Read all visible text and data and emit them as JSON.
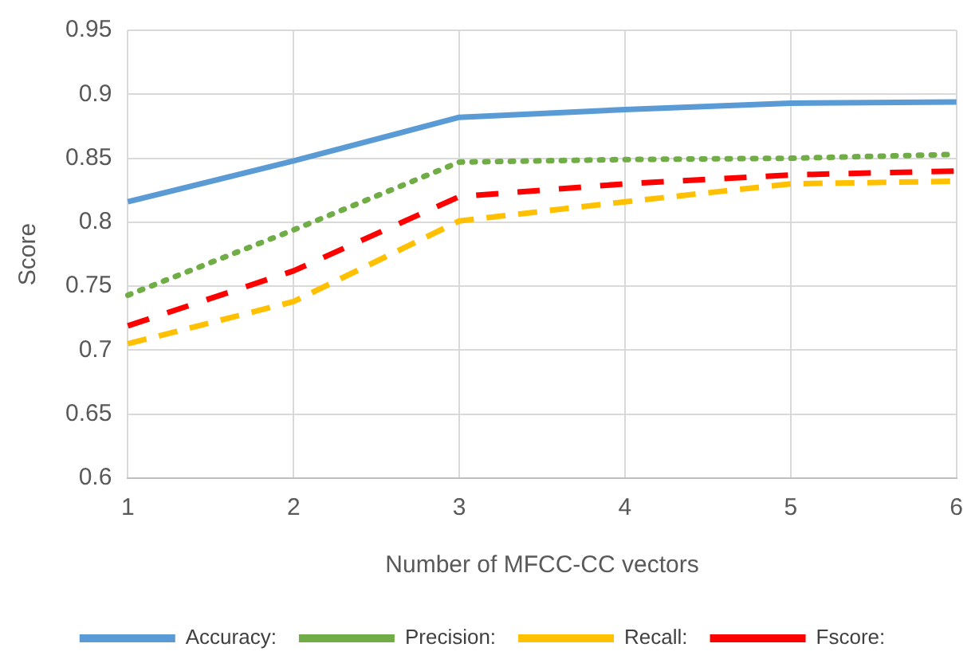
{
  "chart_data": {
    "type": "line",
    "xlabel": "Number of MFCC-CC vectors",
    "ylabel": "Score",
    "categories": [
      "1",
      "2",
      "3",
      "4",
      "5",
      "6"
    ],
    "ylim": [
      0.6,
      0.95
    ],
    "yticks": [
      0.6,
      0.65,
      0.7,
      0.75,
      0.8,
      0.85,
      0.9,
      0.95
    ],
    "grid": true,
    "legend": "bottom",
    "marker": "none",
    "series": [
      {
        "name": "Accuracy:",
        "color": "#5b9bd5",
        "line_style": "solid",
        "values": [
          0.816,
          0.848,
          0.882,
          0.888,
          0.893,
          0.894
        ]
      },
      {
        "name": "Precision:",
        "color": "#70ad47",
        "line_style": "dotted",
        "values": [
          0.743,
          0.794,
          0.847,
          0.849,
          0.85,
          0.853
        ]
      },
      {
        "name": "Recall:",
        "color": "#ffc000",
        "line_style": "dashed",
        "values": [
          0.705,
          0.738,
          0.801,
          0.816,
          0.83,
          0.832
        ]
      },
      {
        "name": "Fscore:",
        "color": "#ff0000",
        "line_style": "dashed",
        "values": [
          0.719,
          0.762,
          0.82,
          0.83,
          0.837,
          0.84
        ]
      }
    ]
  }
}
